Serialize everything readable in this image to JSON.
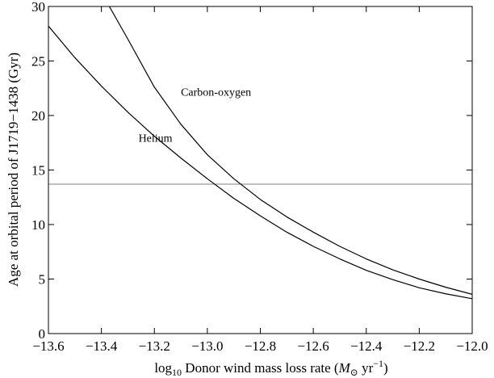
{
  "chart_data": {
    "type": "line",
    "title": "",
    "xlabel_parts": {
      "log": "log",
      "sub": "10",
      "text": " Donor wind mass loss rate (",
      "M": "M",
      "sun": "⊙",
      "unit": " yr",
      "exp": "−1",
      "close": ")"
    },
    "ylabel": "Age at orbital period of J1719−1438 (Gyr)",
    "xlim": [
      -13.6,
      -12.0
    ],
    "ylim": [
      0,
      30
    ],
    "xticks": [
      -13.6,
      -13.4,
      -13.2,
      -13.0,
      -12.8,
      -12.6,
      -12.4,
      -12.2,
      -12.0
    ],
    "xtick_labels": [
      "−13.6",
      "−13.4",
      "−13.2",
      "−13.0",
      "−12.8",
      "−12.6",
      "−12.4",
      "−12.2",
      "−12.0"
    ],
    "yticks": [
      0,
      5,
      10,
      15,
      20,
      25,
      30
    ],
    "ytick_labels": [
      "0",
      "5",
      "10",
      "15",
      "20",
      "25",
      "30"
    ],
    "grid": false,
    "hline": {
      "y": 13.7,
      "color": "#808080"
    },
    "series": [
      {
        "name": "Carbon-oxygen",
        "color": "#000000",
        "x": [
          -13.37,
          -13.3,
          -13.2,
          -13.1,
          -13.0,
          -12.9,
          -12.8,
          -12.7,
          -12.6,
          -12.5,
          -12.4,
          -12.3,
          -12.2,
          -12.1,
          -12.0
        ],
        "y": [
          30.0,
          27.0,
          22.6,
          19.2,
          16.4,
          14.2,
          12.3,
          10.7,
          9.3,
          8.0,
          6.85,
          5.85,
          5.0,
          4.25,
          3.6
        ]
      },
      {
        "name": "Helium",
        "color": "#000000",
        "x": [
          -13.6,
          -13.5,
          -13.4,
          -13.3,
          -13.2,
          -13.1,
          -13.0,
          -12.9,
          -12.8,
          -12.7,
          -12.6,
          -12.5,
          -12.4,
          -12.3,
          -12.2,
          -12.1,
          -12.0
        ],
        "y": [
          28.2,
          25.3,
          22.7,
          20.3,
          18.1,
          16.1,
          14.2,
          12.4,
          10.8,
          9.3,
          8.0,
          6.85,
          5.8,
          4.95,
          4.2,
          3.65,
          3.2
        ]
      }
    ],
    "annotations": [
      {
        "text": "Carbon-oxygen",
        "x": -13.1,
        "y": 21.8
      },
      {
        "text": "Helium",
        "x": -13.26,
        "y": 17.6
      }
    ]
  }
}
